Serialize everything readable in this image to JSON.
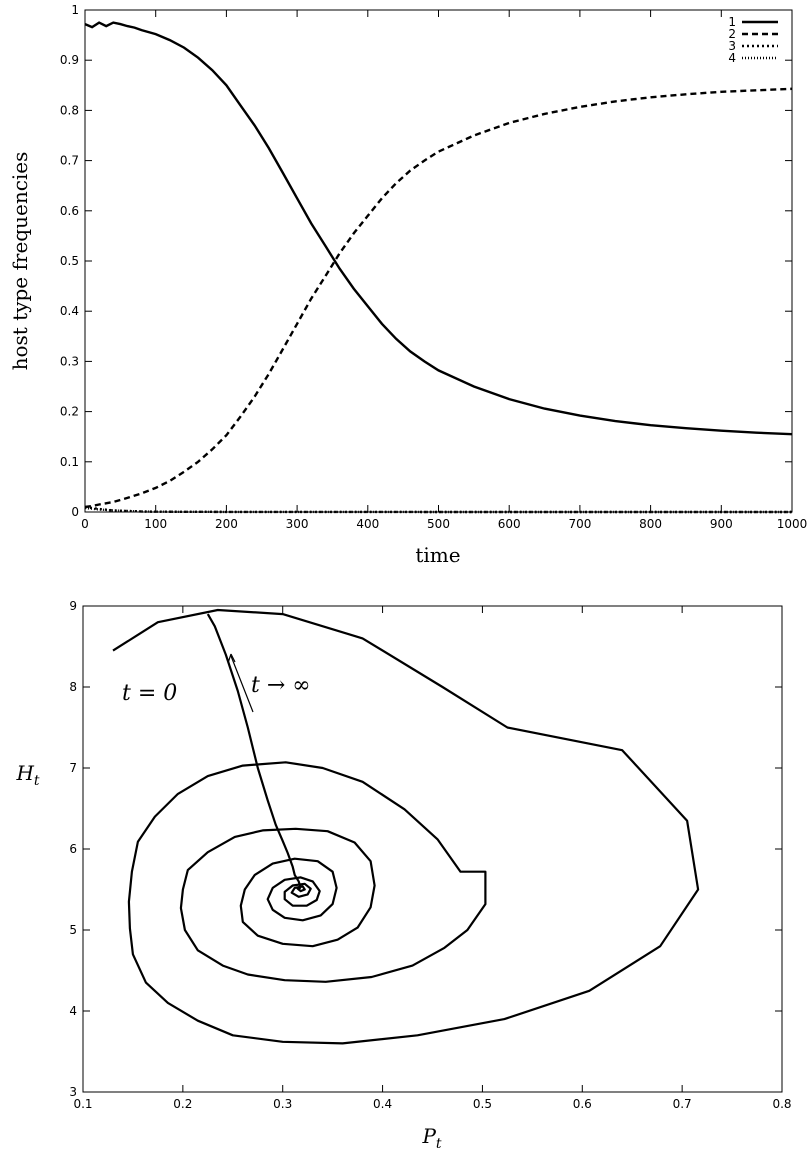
{
  "chart_data": [
    {
      "type": "line",
      "xlabel": "time",
      "ylabel": "host type frequencies",
      "xlim": [
        0,
        1000
      ],
      "ylim": [
        0,
        1
      ],
      "xticks": [
        "0",
        "100",
        "200",
        "300",
        "400",
        "500",
        "600",
        "700",
        "800",
        "900",
        "1000"
      ],
      "yticks": [
        "0",
        "0.1",
        "0.2",
        "0.3",
        "0.4",
        "0.5",
        "0.6",
        "0.7",
        "0.8",
        "0.9",
        "1"
      ],
      "grid": false,
      "legend_position": "top-right",
      "series": [
        {
          "name": "1",
          "dash": "solid",
          "x": [
            0,
            10,
            20,
            30,
            40,
            50,
            60,
            70,
            80,
            100,
            120,
            140,
            160,
            180,
            200,
            220,
            240,
            260,
            280,
            300,
            320,
            340,
            360,
            380,
            400,
            420,
            440,
            460,
            480,
            500,
            550,
            600,
            650,
            700,
            750,
            800,
            850,
            900,
            950,
            1000
          ],
          "y": [
            0.972,
            0.966,
            0.975,
            0.968,
            0.975,
            0.972,
            0.968,
            0.965,
            0.96,
            0.952,
            0.94,
            0.925,
            0.905,
            0.88,
            0.85,
            0.81,
            0.77,
            0.725,
            0.675,
            0.625,
            0.575,
            0.53,
            0.485,
            0.445,
            0.41,
            0.375,
            0.345,
            0.32,
            0.3,
            0.282,
            0.25,
            0.225,
            0.206,
            0.192,
            0.181,
            0.173,
            0.167,
            0.162,
            0.158,
            0.155
          ]
        },
        {
          "name": "2",
          "dash": "6,4",
          "x": [
            0,
            10,
            20,
            40,
            60,
            80,
            100,
            120,
            140,
            160,
            180,
            200,
            220,
            240,
            260,
            280,
            300,
            320,
            340,
            360,
            380,
            400,
            420,
            440,
            460,
            480,
            500,
            550,
            600,
            650,
            700,
            750,
            800,
            850,
            900,
            950,
            1000
          ],
          "y": [
            0.01,
            0.012,
            0.015,
            0.02,
            0.028,
            0.037,
            0.048,
            0.062,
            0.08,
            0.1,
            0.125,
            0.153,
            0.19,
            0.23,
            0.275,
            0.325,
            0.375,
            0.425,
            0.47,
            0.515,
            0.555,
            0.59,
            0.625,
            0.655,
            0.68,
            0.7,
            0.718,
            0.75,
            0.775,
            0.793,
            0.807,
            0.818,
            0.826,
            0.832,
            0.837,
            0.84,
            0.843
          ]
        },
        {
          "name": "3",
          "dash": "2,3",
          "x": [
            0,
            20,
            40,
            60,
            80,
            100,
            150,
            200,
            300,
            500,
            1000
          ],
          "y": [
            0.01,
            0.006,
            0.003,
            0.002,
            0.001,
            0.0005,
            0.0003,
            0.0002,
            0.0001,
            0,
            0
          ]
        },
        {
          "name": "4",
          "dash": "1,2",
          "x": [
            0,
            20,
            40,
            60,
            80,
            100,
            150,
            200,
            300,
            500,
            1000
          ],
          "y": [
            0.008,
            0.005,
            0.003,
            0.002,
            0.001,
            0.0005,
            0.0003,
            0.0002,
            0.0001,
            0,
            0
          ]
        }
      ]
    },
    {
      "type": "line",
      "xlabel": "P",
      "xlabel_sub": "t",
      "ylabel": "H",
      "ylabel_sub": "t",
      "xlim": [
        0.1,
        0.8
      ],
      "ylim": [
        3,
        9
      ],
      "xticks": [
        "0.1",
        "0.2",
        "0.3",
        "0.4",
        "0.5",
        "0.6",
        "0.7",
        "0.8"
      ],
      "yticks": [
        "3",
        "4",
        "5",
        "6",
        "7",
        "8",
        "9"
      ],
      "grid": false,
      "annotations": {
        "start_label": "t = 0",
        "end_label": "t → ∞"
      },
      "series": [
        {
          "trajectory": [
            [
              0.13,
              8.45
            ],
            [
              0.175,
              8.8
            ],
            [
              0.235,
              8.95
            ],
            [
              0.3,
              8.9
            ],
            [
              0.38,
              8.6
            ],
            [
              0.46,
              8.0
            ],
            [
              0.525,
              7.5
            ],
            [
              0.64,
              7.22
            ],
            [
              0.705,
              6.35
            ],
            [
              0.716,
              5.5
            ],
            [
              0.678,
              4.8
            ],
            [
              0.607,
              4.25
            ],
            [
              0.522,
              3.9
            ],
            [
              0.435,
              3.7
            ],
            [
              0.36,
              3.6
            ],
            [
              0.3,
              3.62
            ],
            [
              0.25,
              3.7
            ],
            [
              0.215,
              3.88
            ],
            [
              0.185,
              4.1
            ],
            [
              0.163,
              4.35
            ],
            [
              0.15,
              4.7
            ],
            [
              0.147,
              5.02
            ],
            [
              0.146,
              5.35
            ],
            [
              0.149,
              5.72
            ],
            [
              0.155,
              6.09
            ],
            [
              0.172,
              6.4
            ],
            [
              0.195,
              6.68
            ],
            [
              0.225,
              6.9
            ],
            [
              0.26,
              7.03
            ],
            [
              0.303,
              7.07
            ],
            [
              0.34,
              7.0
            ],
            [
              0.38,
              6.83
            ],
            [
              0.422,
              6.49
            ],
            [
              0.455,
              6.12
            ],
            [
              0.478,
              5.72
            ],
            [
              0.503,
              5.72
            ],
            [
              0.503,
              5.32
            ],
            [
              0.485,
              5.0
            ],
            [
              0.462,
              4.78
            ],
            [
              0.43,
              4.56
            ],
            [
              0.389,
              4.42
            ],
            [
              0.343,
              4.36
            ],
            [
              0.302,
              4.38
            ],
            [
              0.265,
              4.45
            ],
            [
              0.24,
              4.56
            ],
            [
              0.215,
              4.75
            ],
            [
              0.202,
              5.0
            ],
            [
              0.198,
              5.27
            ],
            [
              0.2,
              5.5
            ],
            [
              0.205,
              5.74
            ],
            [
              0.225,
              5.96
            ],
            [
              0.252,
              6.15
            ],
            [
              0.28,
              6.23
            ],
            [
              0.313,
              6.25
            ],
            [
              0.345,
              6.22
            ],
            [
              0.372,
              6.08
            ],
            [
              0.388,
              5.85
            ],
            [
              0.392,
              5.55
            ],
            [
              0.388,
              5.28
            ],
            [
              0.375,
              5.03
            ],
            [
              0.355,
              4.88
            ],
            [
              0.33,
              4.8
            ],
            [
              0.3,
              4.83
            ],
            [
              0.275,
              4.93
            ],
            [
              0.26,
              5.1
            ],
            [
              0.258,
              5.3
            ],
            [
              0.262,
              5.5
            ],
            [
              0.272,
              5.68
            ],
            [
              0.29,
              5.82
            ],
            [
              0.312,
              5.88
            ],
            [
              0.335,
              5.85
            ],
            [
              0.35,
              5.72
            ],
            [
              0.354,
              5.52
            ],
            [
              0.35,
              5.32
            ],
            [
              0.338,
              5.18
            ],
            [
              0.32,
              5.12
            ],
            [
              0.302,
              5.15
            ],
            [
              0.29,
              5.25
            ],
            [
              0.285,
              5.38
            ],
            [
              0.29,
              5.52
            ],
            [
              0.302,
              5.62
            ],
            [
              0.318,
              5.65
            ],
            [
              0.33,
              5.6
            ],
            [
              0.337,
              5.48
            ],
            [
              0.334,
              5.37
            ],
            [
              0.324,
              5.3
            ],
            [
              0.31,
              5.3
            ],
            [
              0.302,
              5.38
            ],
            [
              0.302,
              5.47
            ],
            [
              0.31,
              5.55
            ],
            [
              0.322,
              5.57
            ],
            [
              0.328,
              5.51
            ],
            [
              0.325,
              5.44
            ],
            [
              0.316,
              5.41
            ],
            [
              0.309,
              5.46
            ],
            [
              0.312,
              5.52
            ],
            [
              0.32,
              5.54
            ],
            [
              0.322,
              5.5
            ],
            [
              0.318,
              5.48
            ],
            [
              0.315,
              5.51
            ],
            [
              0.318,
              5.52
            ]
          ]
        },
        {
          "trajectory": [
            [
              0.318,
              5.52
            ],
            [
              0.316,
              5.6
            ],
            [
              0.312,
              5.68
            ],
            [
              0.31,
              5.78
            ],
            [
              0.305,
              5.95
            ],
            [
              0.3,
              6.1
            ],
            [
              0.293,
              6.3
            ],
            [
              0.285,
              6.6
            ],
            [
              0.275,
              7.0
            ],
            [
              0.265,
              7.5
            ],
            [
              0.255,
              7.95
            ],
            [
              0.243,
              8.4
            ],
            [
              0.232,
              8.75
            ],
            [
              0.225,
              8.9
            ]
          ]
        }
      ]
    }
  ]
}
